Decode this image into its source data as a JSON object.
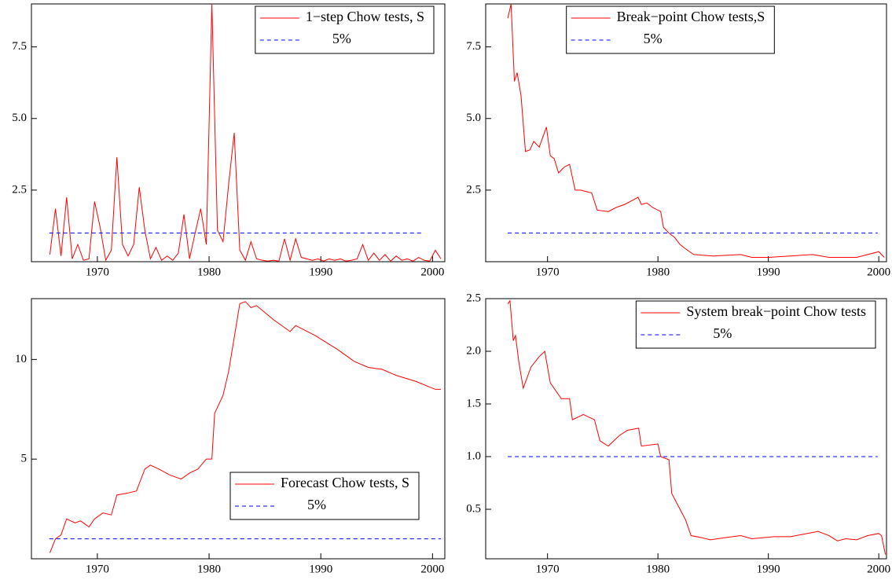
{
  "chart_data": [
    {
      "type": "line",
      "legend": "upper right",
      "xlim": [
        1964.1,
        2001.1
      ],
      "xticks": [
        1970,
        1980,
        1990,
        2000
      ],
      "ylim": [
        0,
        9
      ],
      "yticks": [
        2.5,
        {
          "value": 5,
          "label": "5.0"
        },
        7.5
      ],
      "series": [
        {
          "name": "1−step Chow tests, S",
          "color": "#ff0000",
          "line_style": "solid",
          "x": [
            1965.75,
            1966.25,
            1966.75,
            1967.25,
            1967.75,
            1968.25,
            1968.75,
            1969.25,
            1969.75,
            1970.25,
            1970.75,
            1971.25,
            1971.75,
            1972.25,
            1972.75,
            1973.25,
            1973.75,
            1974.25,
            1974.75,
            1975.25,
            1975.75,
            1976.25,
            1976.75,
            1977.25,
            1977.75,
            1978.25,
            1978.75,
            1979.25,
            1979.75,
            1980.25,
            1980.75,
            1981.25,
            1981.75,
            1982.25,
            1982.75,
            1983.25,
            1983.75,
            1984.25,
            1984.75,
            1985.25,
            1985.75,
            1986.25,
            1986.75,
            1987.25,
            1987.75,
            1988.25,
            1988.75,
            1989.25,
            1989.75,
            1990.25,
            1990.75,
            1991.25,
            1991.75,
            1992.25,
            1992.75,
            1993.25,
            1993.75,
            1994.25,
            1994.75,
            1995.25,
            1995.75,
            1996.25,
            1996.75,
            1997.25,
            1997.75,
            1998.25,
            1998.75,
            1999.25,
            1999.75,
            2000.25,
            2000.75
          ],
          "values": [
            0.25,
            1.85,
            0.2,
            2.25,
            0.1,
            0.6,
            0.05,
            0.1,
            2.1,
            1.2,
            0.05,
            0.4,
            3.65,
            0.6,
            0.2,
            0.6,
            2.6,
            1.1,
            0.1,
            0.5,
            0.05,
            0.2,
            0.05,
            0.3,
            1.65,
            0.1,
            1.0,
            1.85,
            0.6,
            9.0,
            1.1,
            0.7,
            2.7,
            4.5,
            0.4,
            0.05,
            0.7,
            0.1,
            0.05,
            0.02,
            0.05,
            0.02,
            0.8,
            0.05,
            0.8,
            0.15,
            0.1,
            0.05,
            0.1,
            0.02,
            0.1,
            0.05,
            0.1,
            0.02,
            0.05,
            0.1,
            0.6,
            0.05,
            0.3,
            0.05,
            0.25,
            0.02,
            0.2,
            0.05,
            0.1,
            0.02,
            0.15,
            0.05,
            0.02,
            0.4,
            0.1
          ]
        },
        {
          "name": "5%",
          "color": "#0000ff",
          "line_style": "dashed",
          "x": [
            1965.7,
            1999.1
          ],
          "values": [
            1,
            1
          ]
        }
      ]
    },
    {
      "type": "line",
      "legend": "upper center",
      "xlim": [
        1964.4,
        2000.7
      ],
      "xticks": [
        1970,
        1980,
        1990,
        2000
      ],
      "ylim": [
        0,
        9
      ],
      "yticks": [
        2.5,
        {
          "value": 5,
          "label": "5.0"
        },
        7.5
      ],
      "series": [
        {
          "name": "Break−point Chow tests,S",
          "color": "#ff0000",
          "line_style": "solid",
          "x": [
            1966.4,
            1966.7,
            1967.0,
            1967.25,
            1967.6,
            1968.0,
            1968.4,
            1968.75,
            1969.25,
            1969.9,
            1970.25,
            1970.6,
            1971.0,
            1971.5,
            1972.0,
            1972.5,
            1973.0,
            1973.5,
            1974.0,
            1974.5,
            1975.5,
            1976.25,
            1977.0,
            1978.2,
            1978.5,
            1979.0,
            1979.5,
            1980.25,
            1980.5,
            1981.0,
            1981.5,
            1982.0,
            1982.5,
            1983.25,
            1985.0,
            1987.5,
            1988.5,
            1990.0,
            1992.0,
            1994.0,
            1995.5,
            1998.0,
            2000.0,
            2000.5
          ],
          "values": [
            8.5,
            9.0,
            6.3,
            6.6,
            5.8,
            3.85,
            3.9,
            4.2,
            4.0,
            4.7,
            3.7,
            3.6,
            3.1,
            3.3,
            3.4,
            2.5,
            2.5,
            2.45,
            2.4,
            1.8,
            1.75,
            1.9,
            2.0,
            2.25,
            2.0,
            2.05,
            1.9,
            1.75,
            1.2,
            1.0,
            0.85,
            0.6,
            0.45,
            0.25,
            0.2,
            0.25,
            0.15,
            0.15,
            0.2,
            0.25,
            0.15,
            0.15,
            0.35,
            0.15
          ]
        },
        {
          "name": "5%",
          "color": "#0000ff",
          "line_style": "dashed",
          "x": [
            1966.4,
            1999.9
          ],
          "values": [
            1,
            1
          ]
        }
      ]
    },
    {
      "type": "line",
      "legend": "lower right",
      "xlim": [
        1964.1,
        2001.1
      ],
      "xticks": [
        1970,
        1980,
        1990,
        2000
      ],
      "ylim": [
        0,
        13.05
      ],
      "yticks": [
        5,
        10
      ],
      "series": [
        {
          "name": "Forecast Chow tests, S",
          "color": "#ff0000",
          "line_style": "solid",
          "x": [
            1965.75,
            1966.25,
            1966.75,
            1967.25,
            1968.0,
            1968.5,
            1969.25,
            1969.75,
            1970.5,
            1971.25,
            1971.75,
            1972.75,
            1973.5,
            1974.25,
            1974.75,
            1975.5,
            1976.5,
            1977.5,
            1978.25,
            1979.0,
            1979.75,
            1980.25,
            1980.5,
            1981.25,
            1981.75,
            1982.75,
            1983.25,
            1983.75,
            1984.25,
            1985.75,
            1987.25,
            1987.75,
            1989.5,
            1991.5,
            1993.0,
            1994.25,
            1995.5,
            1996.75,
            1998.5,
            2000.25,
            2000.75
          ],
          "values": [
            0.3,
            1.0,
            1.2,
            2.0,
            1.8,
            1.9,
            1.6,
            2.0,
            2.3,
            2.2,
            3.2,
            3.3,
            3.4,
            4.5,
            4.7,
            4.5,
            4.2,
            4.0,
            4.3,
            4.5,
            5.0,
            5.0,
            7.3,
            8.2,
            9.4,
            12.8,
            12.9,
            12.6,
            12.7,
            12.0,
            11.4,
            11.7,
            11.2,
            10.5,
            9.9,
            9.6,
            9.5,
            9.2,
            8.9,
            8.5,
            8.5
          ]
        },
        {
          "name": "5%",
          "color": "#0000ff",
          "line_style": "dashed",
          "x": [
            1965.7,
            2000.75
          ],
          "values": [
            1,
            1
          ]
        }
      ]
    },
    {
      "type": "line",
      "legend": "upper right",
      "xlim": [
        1964.4,
        2000.7
      ],
      "xticks": [
        1970,
        1980,
        1990,
        2000
      ],
      "ylim": [
        0.03,
        2.5
      ],
      "yticks": [
        0.5,
        {
          "value": 1,
          "label": "1.0"
        },
        1.5,
        {
          "value": 2,
          "label": "2.0"
        },
        2.5
      ],
      "series": [
        {
          "name": "System break−point Chow tests",
          "color": "#ff0000",
          "line_style": "solid",
          "x": [
            1966.4,
            1966.6,
            1966.9,
            1967.1,
            1967.4,
            1967.8,
            1968.5,
            1969.25,
            1969.75,
            1970.25,
            1971.25,
            1972.0,
            1972.25,
            1973.25,
            1974.25,
            1974.75,
            1975.5,
            1976.5,
            1977.25,
            1978.25,
            1978.5,
            1980.0,
            1980.25,
            1981.0,
            1981.25,
            1982.0,
            1982.5,
            1983.0,
            1984.0,
            1984.75,
            1986.0,
            1987.5,
            1988.5,
            1990.5,
            1992.0,
            1993.5,
            1994.5,
            1995.5,
            1996.25,
            1997.0,
            1998.0,
            1999.0,
            2000.0,
            2000.25,
            2000.6
          ],
          "values": [
            2.45,
            2.48,
            2.1,
            2.15,
            1.9,
            1.65,
            1.85,
            1.95,
            2.0,
            1.7,
            1.55,
            1.55,
            1.35,
            1.4,
            1.35,
            1.15,
            1.1,
            1.2,
            1.25,
            1.27,
            1.1,
            1.12,
            1.0,
            0.97,
            0.65,
            0.5,
            0.4,
            0.25,
            0.23,
            0.21,
            0.23,
            0.25,
            0.22,
            0.24,
            0.24,
            0.27,
            0.29,
            0.25,
            0.2,
            0.22,
            0.21,
            0.25,
            0.27,
            0.25,
            0.07
          ]
        },
        {
          "name": "5%",
          "color": "#0000ff",
          "line_style": "dashed",
          "x": [
            1966.4,
            1999.9
          ],
          "values": [
            1,
            1
          ]
        }
      ]
    }
  ]
}
